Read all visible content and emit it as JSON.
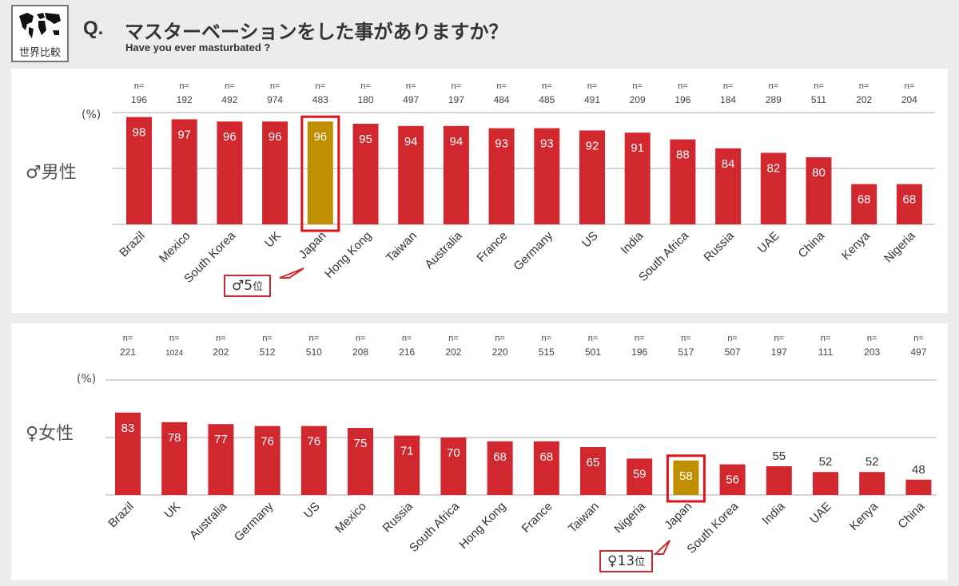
{
  "header": {
    "logo_text": "世界比較",
    "q_mark": "Q.",
    "title": "マスターベーションをした事がありますか？",
    "subtitle": "Have you ever masturbated ?"
  },
  "colors": {
    "bar": "#d0282e",
    "highlight": "#bf8f00",
    "frame": "#e0131b"
  },
  "chart_data": [
    {
      "type": "bar",
      "name": "male",
      "sex_label": "♂男性",
      "ylabel": "(%)",
      "categories": [
        "Brazil",
        "Mexico",
        "South Korea",
        "UK",
        "Japan",
        "Hong Kong",
        "Taiwan",
        "Australia",
        "France",
        "Germany",
        "US",
        "India",
        "South Africa",
        "Russia",
        "UAE",
        "China",
        "Kenya",
        "Nigeria"
      ],
      "values": [
        98,
        97,
        96,
        96,
        96,
        95,
        94,
        94,
        93,
        93,
        92,
        91,
        88,
        84,
        82,
        80,
        68,
        68
      ],
      "n_prefix": "n=",
      "n": [
        "196",
        "192",
        "492",
        "974",
        "483",
        "180",
        "497",
        "197",
        "484",
        "485",
        "491",
        "209",
        "196",
        "184",
        "289",
        "511",
        "202",
        "204"
      ],
      "highlight": "Japan",
      "rank_symbol": "♂",
      "rank_num": "5",
      "rank_unit": "位",
      "ylim": [
        50,
        100
      ]
    },
    {
      "type": "bar",
      "name": "female",
      "sex_label": "♀女性",
      "ylabel": "(%)",
      "categories": [
        "Brazil",
        "UK",
        "Australia",
        "Germany",
        "US",
        "Mexico",
        "Russia",
        "South Africa",
        "Hong Kong",
        "France",
        "Taiwan",
        "Nigeria",
        "Japan",
        "South Korea",
        "India",
        "UAE",
        "Kenya",
        "China"
      ],
      "values": [
        83,
        78,
        77,
        76,
        76,
        75,
        71,
        70,
        68,
        68,
        65,
        59,
        58,
        56,
        55,
        52,
        52,
        48
      ],
      "n_prefix": "n=",
      "n": [
        "221",
        "1024",
        "202",
        "512",
        "510",
        "208",
        "216",
        "202",
        "220",
        "515",
        "501",
        "196",
        "517",
        "507",
        "197",
        "111",
        "203",
        "497"
      ],
      "highlight": "Japan",
      "rank_symbol": "♀",
      "rank_num": "13",
      "rank_unit": "位",
      "ylim": [
        40,
        100
      ]
    }
  ]
}
